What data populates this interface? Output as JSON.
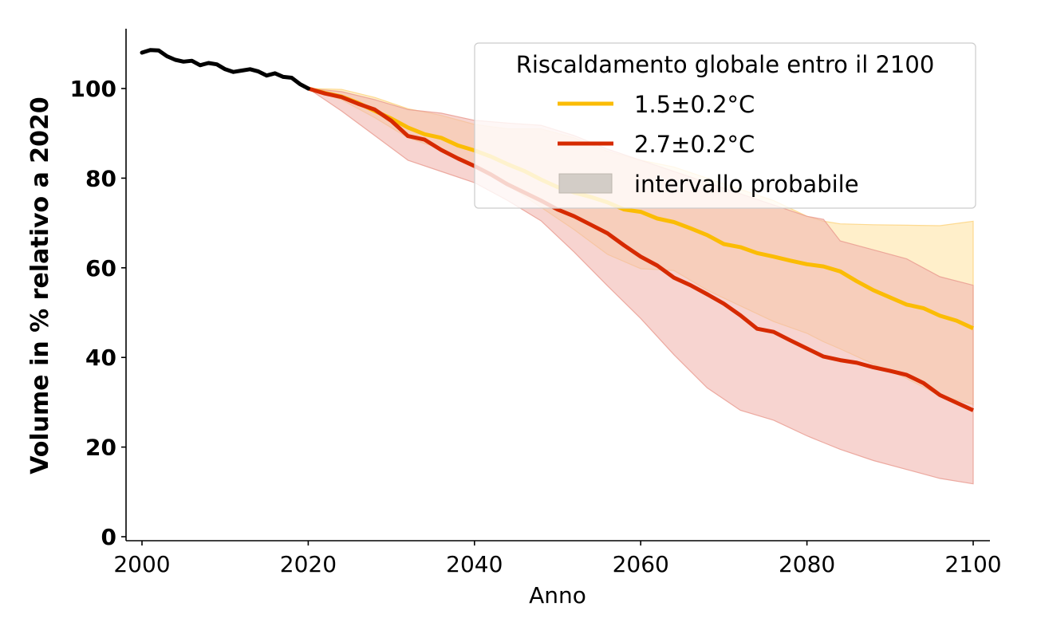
{
  "chart_data": {
    "type": "line",
    "title": "",
    "xlabel": "Anno",
    "ylabel": "Volume in % relativo a 2020",
    "xlim": [
      1998,
      2102
    ],
    "ylim": [
      0,
      113
    ],
    "x_ticks": [
      2000,
      2020,
      2040,
      2060,
      2080,
      2100
    ],
    "x_tick_labels": [
      "2000",
      "2020",
      "2040",
      "2060",
      "2080",
      "2100"
    ],
    "y_ticks": [
      0,
      20,
      40,
      60,
      80,
      100
    ],
    "y_tick_labels": [
      "0",
      "20",
      "40",
      "60",
      "80",
      "100"
    ],
    "grid": false,
    "legend": {
      "title": "Riscaldamento globale entro il 2100",
      "placement": "top-right",
      "entries": [
        {
          "label": "1.5±0.2°C",
          "kind": "line",
          "series": "scen_15"
        },
        {
          "label": "2.7±0.2°C",
          "kind": "line",
          "series": "scen_27"
        },
        {
          "label": "intervallo probabile",
          "kind": "patch"
        }
      ]
    },
    "colors": {
      "observed": "#000000",
      "scen_15": "#fbbc05",
      "scen_27": "#d62a00",
      "band_15": "#ffe9b8",
      "band_27": "#f2b8b0",
      "legend_patch": "#d3cdc7"
    },
    "observed": {
      "name": "osservato",
      "x": [
        2000,
        2001,
        2002,
        2003,
        2004,
        2005,
        2006,
        2007,
        2008,
        2009,
        2010,
        2011,
        2012,
        2013,
        2014,
        2015,
        2016,
        2017,
        2018,
        2019,
        2020
      ],
      "values": [
        108.0,
        108.6,
        108.5,
        107.2,
        106.4,
        106.0,
        106.2,
        105.2,
        105.7,
        105.4,
        104.3,
        103.7,
        104.0,
        104.3,
        103.8,
        102.9,
        103.4,
        102.6,
        102.4,
        101.0,
        100.0
      ]
    },
    "series": [
      {
        "name": "1.5±0.2°C",
        "key": "scen_15",
        "x": [
          2020,
          2022,
          2024,
          2026,
          2028,
          2030,
          2032,
          2034,
          2036,
          2038,
          2040,
          2042,
          2044,
          2046,
          2048,
          2050,
          2052,
          2054,
          2056,
          2058,
          2060,
          2062,
          2064,
          2066,
          2068,
          2070,
          2072,
          2074,
          2076,
          2078,
          2080,
          2082,
          2084,
          2086,
          2088,
          2090,
          2092,
          2094,
          2096,
          2098,
          2100
        ],
        "values": [
          100.0,
          99.0,
          98.2,
          96.8,
          95.0,
          93.3,
          91.3,
          89.8,
          89.0,
          87.3,
          86.2,
          84.8,
          83.1,
          81.6,
          79.7,
          78.0,
          76.8,
          75.8,
          74.6,
          73.0,
          72.5,
          71.0,
          70.2,
          68.8,
          67.3,
          65.3,
          64.6,
          63.3,
          62.5,
          61.6,
          60.8,
          60.3,
          59.2,
          57.0,
          55.0,
          53.4,
          51.8,
          51.0,
          49.3,
          48.2,
          46.5
        ]
      },
      {
        "name": "2.7±0.2°C",
        "key": "scen_27",
        "x": [
          2020,
          2022,
          2024,
          2026,
          2028,
          2030,
          2032,
          2034,
          2036,
          2038,
          2040,
          2042,
          2044,
          2046,
          2048,
          2050,
          2052,
          2054,
          2056,
          2058,
          2060,
          2062,
          2064,
          2066,
          2068,
          2070,
          2072,
          2074,
          2076,
          2078,
          2080,
          2082,
          2084,
          2086,
          2088,
          2090,
          2092,
          2094,
          2096,
          2098,
          2100
        ],
        "values": [
          100.0,
          98.9,
          98.1,
          96.6,
          95.3,
          92.8,
          89.4,
          88.6,
          86.3,
          84.4,
          82.7,
          80.8,
          78.6,
          76.8,
          75.0,
          73.0,
          71.5,
          69.6,
          67.7,
          65.0,
          62.5,
          60.5,
          57.8,
          56.1,
          54.1,
          52.0,
          49.4,
          46.4,
          45.7,
          43.8,
          42.0,
          40.2,
          39.4,
          38.8,
          37.8,
          37.0,
          36.1,
          34.3,
          31.6,
          29.9,
          28.2
        ]
      }
    ],
    "bands": [
      {
        "name": "intervallo probabile 1.5±0.2°C",
        "key": "band_15",
        "x": [
          2020,
          2024,
          2028,
          2032,
          2036,
          2040,
          2044,
          2048,
          2052,
          2056,
          2060,
          2064,
          2068,
          2072,
          2076,
          2080,
          2082,
          2084,
          2088,
          2092,
          2096,
          2100
        ],
        "upper": [
          100.0,
          99.8,
          98.0,
          95.5,
          94.0,
          92.0,
          91.0,
          91.0,
          89.0,
          86.0,
          84.0,
          82.5,
          80.0,
          77.5,
          75.0,
          71.5,
          70.4,
          69.8,
          69.6,
          69.5,
          69.4,
          70.4
        ],
        "lower": [
          100.0,
          97.5,
          93.5,
          89.0,
          86.5,
          83.0,
          78.5,
          73.5,
          68.5,
          63.0,
          59.8,
          59.4,
          55.0,
          51.5,
          48.0,
          45.4,
          43.5,
          41.9,
          38.5,
          35.3,
          31.5,
          29.5
        ]
      },
      {
        "name": "intervallo probabile 2.7±0.2°C",
        "key": "band_27",
        "x": [
          2020,
          2024,
          2028,
          2032,
          2036,
          2040,
          2044,
          2048,
          2052,
          2056,
          2060,
          2064,
          2068,
          2072,
          2076,
          2080,
          2082,
          2084,
          2088,
          2092,
          2096,
          2100
        ],
        "upper": [
          100.0,
          99.3,
          97.5,
          95.3,
          94.5,
          92.9,
          92.3,
          91.8,
          89.5,
          86.5,
          84.0,
          81.5,
          79.0,
          76.5,
          74.0,
          71.5,
          70.8,
          66.0,
          64.0,
          62.0,
          58.0,
          56.1
        ],
        "lower": [
          100.0,
          95.0,
          89.5,
          84.0,
          81.5,
          79.0,
          75.0,
          70.5,
          63.5,
          56.0,
          48.7,
          40.6,
          33.2,
          28.2,
          26.0,
          22.5,
          21.0,
          19.5,
          17.0,
          15.0,
          13.0,
          11.8
        ]
      }
    ]
  }
}
